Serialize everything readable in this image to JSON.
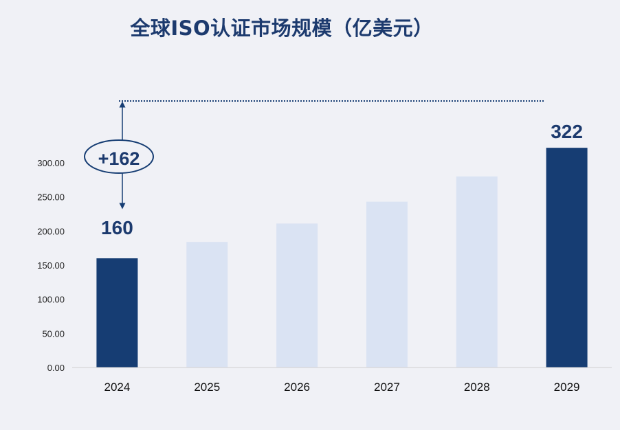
{
  "chart_data": {
    "type": "bar",
    "title": "全球ISO认证市场规模（亿美元）",
    "categories": [
      "2024",
      "2025",
      "2026",
      "2027",
      "2028",
      "2029"
    ],
    "values": [
      160,
      184,
      211,
      243,
      280,
      322
    ],
    "highlight": [
      true,
      false,
      false,
      false,
      false,
      true
    ],
    "data_labels": [
      "160",
      "",
      "",
      "",
      "",
      "322"
    ],
    "yticks": [
      "0.00",
      "50.00",
      "100.00",
      "150.00",
      "200.00",
      "250.00",
      "300.00"
    ],
    "ylim": [
      0,
      350
    ],
    "annotation": "+162",
    "colors": {
      "highlight": "#163d73",
      "normal": "#dae3f3",
      "axis": "#d0d0d0",
      "text": "#1c3a6e"
    }
  }
}
